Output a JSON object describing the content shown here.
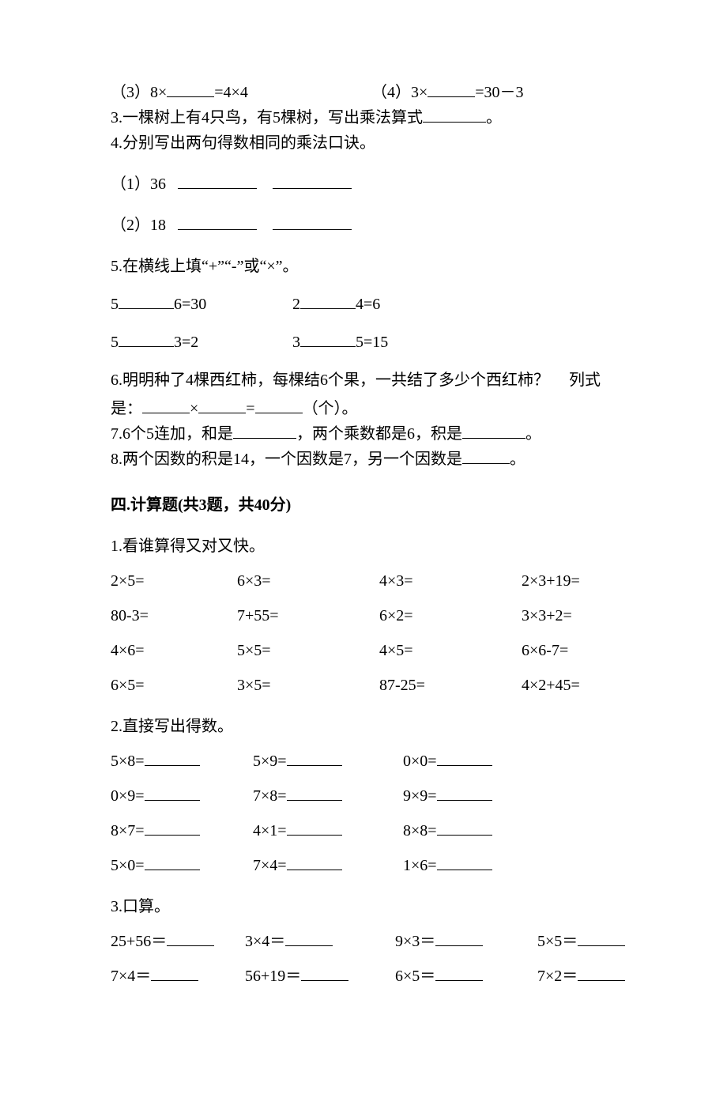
{
  "q2_3": {
    "left": "（3）8×",
    "mid": "=4×4",
    "right_label": "（4）3×",
    "right_tail": "=30－3"
  },
  "q3": {
    "pre": "3.一棵树上有4只鸟，有5棵树，写出乘法算式",
    "post": "。"
  },
  "q4": {
    "title": "4.分别写出两句得数相同的乘法口诀。",
    "r1": "（1）36",
    "r2": "（2）18"
  },
  "q5": {
    "title": "5.在横线上填“+”“-”或“×”。",
    "a1": "5",
    "a2": "6=30",
    "b1": "2",
    "b2": "4=6",
    "c1": "5",
    "c2": "3=2",
    "d1": "3",
    "d2": "5=15"
  },
  "q6": {
    "text1": "6.明明种了4棵西红柿，每棵结6个果，一共结了多少个西红柿？",
    "text1b": "列式",
    "text2a": "是：",
    "text2b": "×",
    "text2c": "=",
    "text2d": "（个）。"
  },
  "q7": {
    "a": "7.6个5连加，和是",
    "b": "，两个乘数都是6，积是",
    "c": "。"
  },
  "q8": {
    "a": "8.两个因数的积是14，一个因数是7，另一个因数是",
    "b": "。"
  },
  "sec4": "四.计算题(共3题，共40分)",
  "p1": {
    "title": "1.看谁算得又对又快。",
    "rows": [
      [
        "2×5=",
        "6×3=",
        "4×3=",
        "2×3+19="
      ],
      [
        "80-3=",
        "7+55=",
        "6×2=",
        "3×3+2="
      ],
      [
        "4×6=",
        "5×5=",
        "4×5=",
        "6×6-7="
      ],
      [
        "6×5=",
        "3×5=",
        "87-25=",
        "4×2+45="
      ]
    ]
  },
  "p2": {
    "title": "2.直接写出得数。",
    "rows": [
      [
        "5×8=",
        "5×9=",
        "0×0="
      ],
      [
        "0×9=",
        "7×8=",
        "9×9="
      ],
      [
        "8×7=",
        "4×1=",
        "8×8="
      ],
      [
        "5×0=",
        "7×4=",
        "1×6="
      ]
    ]
  },
  "p3": {
    "title": "3.口算。",
    "rows": [
      [
        "25+56＝",
        "3×4＝",
        "9×3＝",
        "5×5＝"
      ],
      [
        "7×4＝",
        "56+19＝",
        "6×5＝",
        "7×2＝"
      ]
    ]
  }
}
